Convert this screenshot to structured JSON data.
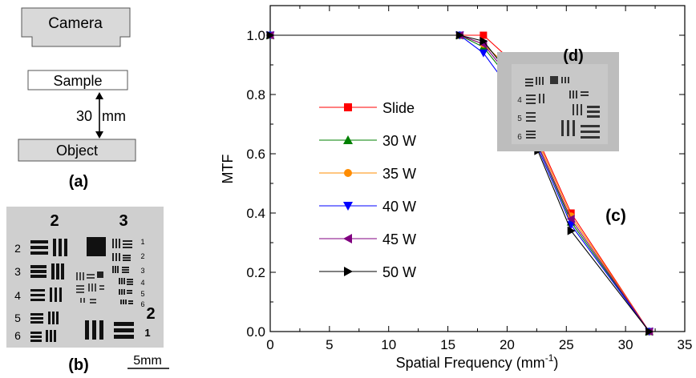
{
  "setup_diagram": {
    "camera_label": "Camera",
    "sample_label": "Sample",
    "object_label": "Object",
    "distance_number": "30",
    "distance_unit": "mm",
    "panel_label": "(a)"
  },
  "target_photo": {
    "panel_label": "(b)",
    "scale_bar_label": "5mm",
    "group_labels": [
      "2",
      "3",
      "2"
    ],
    "element_labels": [
      "2",
      "3",
      "4",
      "5",
      "6",
      "1",
      "1",
      "2",
      "3",
      "4",
      "5",
      "6",
      "1"
    ]
  },
  "inset_photo": {
    "panel_label": "(d)",
    "element_labels": [
      "4",
      "5",
      "6"
    ]
  },
  "chart_data": {
    "type": "line",
    "panel_label": "(c)",
    "xlabel_main": "Spatial Frequency (mm",
    "xlabel_sup": "-1",
    "xlabel_close": ")",
    "ylabel": "MTF",
    "xlim": [
      0,
      35
    ],
    "ylim": [
      0,
      1.0
    ],
    "x_ticks": [
      "0",
      "5",
      "10",
      "15",
      "20",
      "25",
      "30",
      "35"
    ],
    "x_tick_values": [
      0,
      5,
      10,
      15,
      20,
      25,
      30,
      35
    ],
    "y_ticks": [
      "0.0",
      "0.2",
      "0.4",
      "0.6",
      "0.8",
      "1.0"
    ],
    "y_tick_values": [
      0,
      0.2,
      0.4,
      0.6,
      0.8,
      1.0
    ],
    "grid": false,
    "legend_position": "left-center",
    "series": [
      {
        "name": "Slide",
        "color": "#ff0000",
        "marker": "square",
        "x": [
          0,
          16,
          18,
          20.2,
          22.6,
          25.4,
          32
        ],
        "y": [
          1.0,
          1.0,
          1.0,
          0.92,
          0.65,
          0.4,
          0.0
        ]
      },
      {
        "name": "30 W",
        "color": "#008000",
        "marker": "triangle-up",
        "x": [
          0,
          16,
          18,
          20.2,
          22.6,
          25.4,
          32
        ],
        "y": [
          1.0,
          1.0,
          0.96,
          0.85,
          0.63,
          0.37,
          0.0
        ]
      },
      {
        "name": "35 W",
        "color": "#ff8c00",
        "marker": "circle",
        "x": [
          0,
          16,
          18,
          20.2,
          22.6,
          25.4,
          32
        ],
        "y": [
          1.0,
          1.0,
          0.97,
          0.89,
          0.64,
          0.39,
          0.0
        ]
      },
      {
        "name": "40 W",
        "color": "#0000ff",
        "marker": "triangle-down",
        "x": [
          0,
          16,
          18,
          20.2,
          22.6,
          25.4,
          32
        ],
        "y": [
          1.0,
          1.0,
          0.94,
          0.82,
          0.62,
          0.36,
          0.0
        ]
      },
      {
        "name": "45 W",
        "color": "#800080",
        "marker": "triangle-left",
        "x": [
          0,
          16,
          18,
          20.2,
          22.6,
          25.4,
          32
        ],
        "y": [
          1.0,
          1.0,
          0.97,
          0.86,
          0.63,
          0.38,
          0.0
        ]
      },
      {
        "name": "50 W",
        "color": "#000000",
        "marker": "triangle-right",
        "x": [
          0,
          16,
          18,
          20.2,
          22.6,
          25.4,
          32
        ],
        "y": [
          1.0,
          1.0,
          0.98,
          0.87,
          0.61,
          0.34,
          0.0
        ]
      }
    ]
  }
}
